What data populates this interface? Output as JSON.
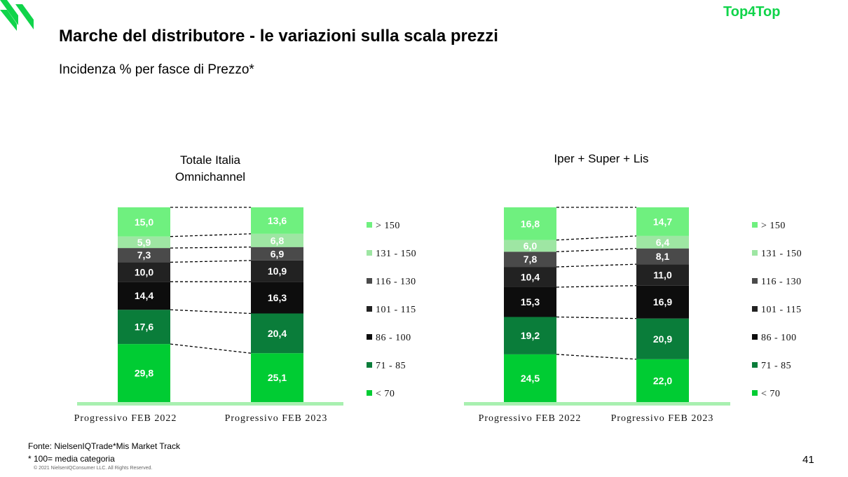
{
  "header": {
    "brand": "Top4Top",
    "title": "Marche del distributore - le variazioni sulla scala prezzi",
    "subtitle": "Incidenza % per fasce di Prezzo*"
  },
  "footer": {
    "source": "Fonte: NielsenIQTrade*Mis  Market Track",
    "note": "* 100= media categoria",
    "copyright": "© 2021 NielsenIQConsumer LLC. All Rights Reserved.",
    "page_number": "41"
  },
  "colors": {
    "<70": "#00cc33",
    "71-85": "#0a7d3a",
    "86-100": "#0d0d0d",
    "101-115": "#222222",
    "116-130": "#4a4a4a",
    "131-150": "#9ee6a3",
    ">150": "#6ff07f",
    "baseline": "#a8f0b0",
    "brand": "#10d44a"
  },
  "chart_data": [
    {
      "type": "bar",
      "stacked": true,
      "title": [
        "Totale Italia",
        "Omnichannel"
      ],
      "categories": [
        "Progressivo FEB  2022",
        "Progressivo FEB  2023"
      ],
      "series": [
        {
          "name": "< 70",
          "values": [
            29.8,
            25.1
          ],
          "labels": [
            "29,8",
            "25,1"
          ]
        },
        {
          "name": "71 - 85",
          "values": [
            17.6,
            20.4
          ],
          "labels": [
            "17,6",
            "20,4"
          ]
        },
        {
          "name": "86 - 100",
          "values": [
            14.4,
            16.3
          ],
          "labels": [
            "14,4",
            "16,3"
          ]
        },
        {
          "name": "101 - 115",
          "values": [
            10.0,
            10.9
          ],
          "labels": [
            "10,0",
            "10,9"
          ]
        },
        {
          "name": "116 - 130",
          "values": [
            7.3,
            6.9
          ],
          "labels": [
            "7,3",
            "6,9"
          ]
        },
        {
          "name": "131 - 150",
          "values": [
            5.9,
            6.8
          ],
          "labels": [
            "5,9",
            "6,8"
          ]
        },
        {
          "name": "> 150",
          "values": [
            15.0,
            13.6
          ],
          "labels": [
            "15,0",
            "13,6"
          ]
        }
      ],
      "legend": "right"
    },
    {
      "type": "bar",
      "stacked": true,
      "title": [
        "Iper + Super + Lis"
      ],
      "categories": [
        "Progressivo FEB 2022",
        "Progressivo FEB 2023"
      ],
      "series": [
        {
          "name": "< 70",
          "values": [
            24.5,
            22.0
          ],
          "labels": [
            "24,5",
            "22,0"
          ]
        },
        {
          "name": "71 - 85",
          "values": [
            19.2,
            20.9
          ],
          "labels": [
            "19,2",
            "20,9"
          ]
        },
        {
          "name": "86 - 100",
          "values": [
            15.3,
            16.9
          ],
          "labels": [
            "15,3",
            "16,9"
          ]
        },
        {
          "name": "101 - 115",
          "values": [
            10.4,
            11.0
          ],
          "labels": [
            "10,4",
            "11,0"
          ]
        },
        {
          "name": "116 - 130",
          "values": [
            7.8,
            8.1
          ],
          "labels": [
            "7,8",
            "8,1"
          ]
        },
        {
          "name": "131 - 150",
          "values": [
            6.0,
            6.4
          ],
          "labels": [
            "6,0",
            "6,4"
          ]
        },
        {
          "name": "> 150",
          "values": [
            16.8,
            14.7
          ],
          "labels": [
            "16,8",
            "14,7"
          ]
        }
      ],
      "legend": "right"
    }
  ]
}
